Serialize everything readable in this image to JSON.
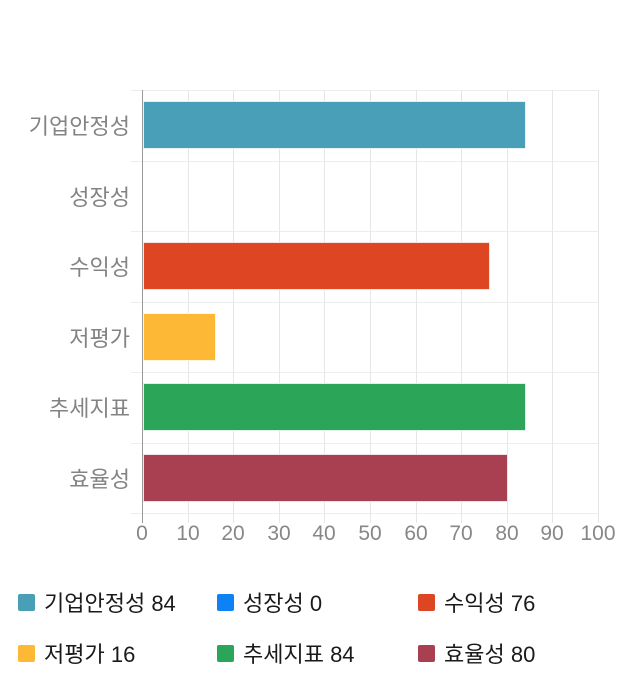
{
  "chart_data": {
    "type": "bar",
    "orientation": "horizontal",
    "title": "",
    "categories": [
      "기업안정성",
      "성장성",
      "수익성",
      "저평가",
      "추세지표",
      "효율성"
    ],
    "values": [
      84,
      0,
      76,
      16,
      84,
      80
    ],
    "colors": [
      "#4A9FB8",
      "#0D82F5",
      "#DE4523",
      "#FDB935",
      "#2BA558",
      "#A84052"
    ],
    "xlim": [
      0,
      100
    ],
    "xticks": [
      0,
      10,
      20,
      30,
      40,
      50,
      60,
      70,
      80,
      90,
      100
    ],
    "grid": true,
    "axis_color": "#999999",
    "grid_color": "#e6e6e6",
    "row_line_color": "#ededed",
    "legend_position": "bottom",
    "legend": [
      {
        "label": "기업안정성 84"
      },
      {
        "label": "성장성 0"
      },
      {
        "label": "수익성 76"
      },
      {
        "label": "저평가 16"
      },
      {
        "label": "추세지표 84"
      },
      {
        "label": "효율성 80"
      }
    ]
  }
}
